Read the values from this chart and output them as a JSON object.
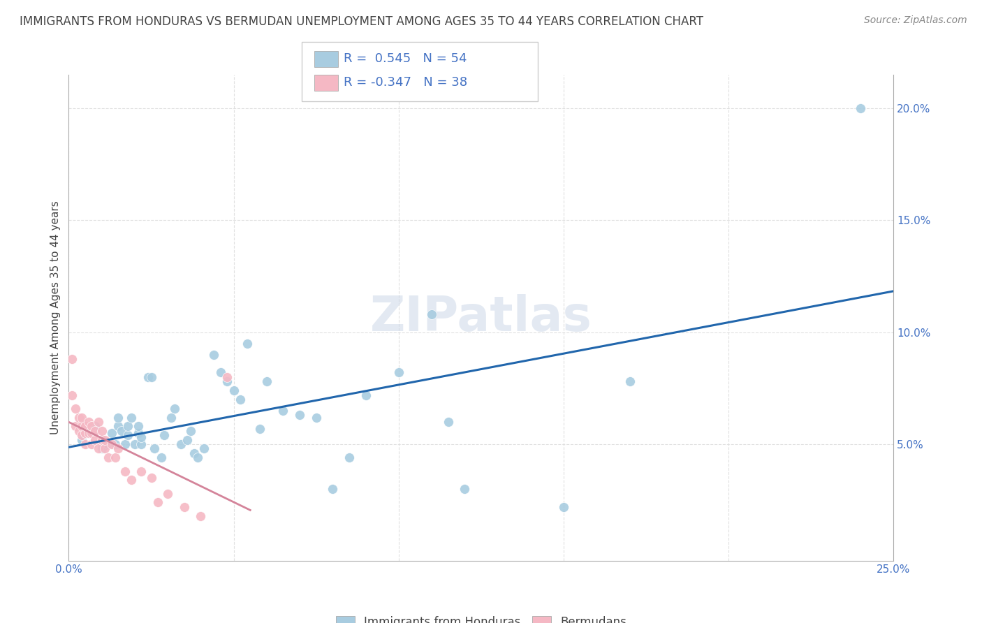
{
  "title": "IMMIGRANTS FROM HONDURAS VS BERMUDAN UNEMPLOYMENT AMONG AGES 35 TO 44 YEARS CORRELATION CHART",
  "source": "Source: ZipAtlas.com",
  "ylabel": "Unemployment Among Ages 35 to 44 years",
  "xlim": [
    0.0,
    0.25
  ],
  "ylim": [
    -0.002,
    0.215
  ],
  "xticks": [
    0.0,
    0.05,
    0.1,
    0.15,
    0.2,
    0.25
  ],
  "xtick_labels": [
    "0.0%",
    "",
    "",
    "",
    "",
    "25.0%"
  ],
  "yticks": [
    0.05,
    0.1,
    0.15,
    0.2
  ],
  "ytick_labels": [
    "5.0%",
    "10.0%",
    "15.0%",
    "20.0%"
  ],
  "blue_dot_color": "#a8cce0",
  "pink_dot_color": "#f5b8c4",
  "blue_line_color": "#2166ac",
  "pink_line_color": "#d4849a",
  "legend_text_color": "#4472c4",
  "tick_color": "#4472c4",
  "title_color": "#444444",
  "source_color": "#888888",
  "grid_color": "#dddddd",
  "watermark_color": "#cdd8e8",
  "blue_r": "0.545",
  "blue_n": "54",
  "pink_r": "-0.347",
  "pink_n": "38",
  "blue_scatter_x": [
    0.004,
    0.006,
    0.008,
    0.01,
    0.011,
    0.012,
    0.013,
    0.014,
    0.015,
    0.015,
    0.016,
    0.017,
    0.018,
    0.018,
    0.019,
    0.02,
    0.021,
    0.021,
    0.022,
    0.022,
    0.024,
    0.025,
    0.026,
    0.028,
    0.029,
    0.031,
    0.032,
    0.034,
    0.036,
    0.037,
    0.038,
    0.039,
    0.041,
    0.044,
    0.046,
    0.048,
    0.05,
    0.052,
    0.054,
    0.058,
    0.06,
    0.065,
    0.07,
    0.075,
    0.08,
    0.085,
    0.09,
    0.1,
    0.11,
    0.115,
    0.12,
    0.15,
    0.17,
    0.24
  ],
  "blue_scatter_y": [
    0.052,
    0.055,
    0.058,
    0.048,
    0.051,
    0.05,
    0.055,
    0.05,
    0.058,
    0.062,
    0.056,
    0.05,
    0.054,
    0.058,
    0.062,
    0.05,
    0.055,
    0.058,
    0.05,
    0.053,
    0.08,
    0.08,
    0.048,
    0.044,
    0.054,
    0.062,
    0.066,
    0.05,
    0.052,
    0.056,
    0.046,
    0.044,
    0.048,
    0.09,
    0.082,
    0.078,
    0.074,
    0.07,
    0.095,
    0.057,
    0.078,
    0.065,
    0.063,
    0.062,
    0.03,
    0.044,
    0.072,
    0.082,
    0.108,
    0.06,
    0.03,
    0.022,
    0.078,
    0.2
  ],
  "pink_scatter_x": [
    0.001,
    0.001,
    0.002,
    0.002,
    0.003,
    0.003,
    0.004,
    0.004,
    0.004,
    0.005,
    0.005,
    0.005,
    0.006,
    0.006,
    0.007,
    0.007,
    0.007,
    0.008,
    0.008,
    0.009,
    0.009,
    0.01,
    0.01,
    0.011,
    0.011,
    0.012,
    0.013,
    0.014,
    0.015,
    0.017,
    0.019,
    0.022,
    0.025,
    0.027,
    0.03,
    0.035,
    0.04,
    0.048
  ],
  "pink_scatter_y": [
    0.088,
    0.072,
    0.058,
    0.066,
    0.056,
    0.062,
    0.054,
    0.058,
    0.062,
    0.05,
    0.055,
    0.058,
    0.055,
    0.06,
    0.05,
    0.055,
    0.058,
    0.052,
    0.056,
    0.048,
    0.06,
    0.052,
    0.056,
    0.048,
    0.052,
    0.044,
    0.05,
    0.044,
    0.048,
    0.038,
    0.034,
    0.038,
    0.035,
    0.024,
    0.028,
    0.022,
    0.018,
    0.08
  ]
}
